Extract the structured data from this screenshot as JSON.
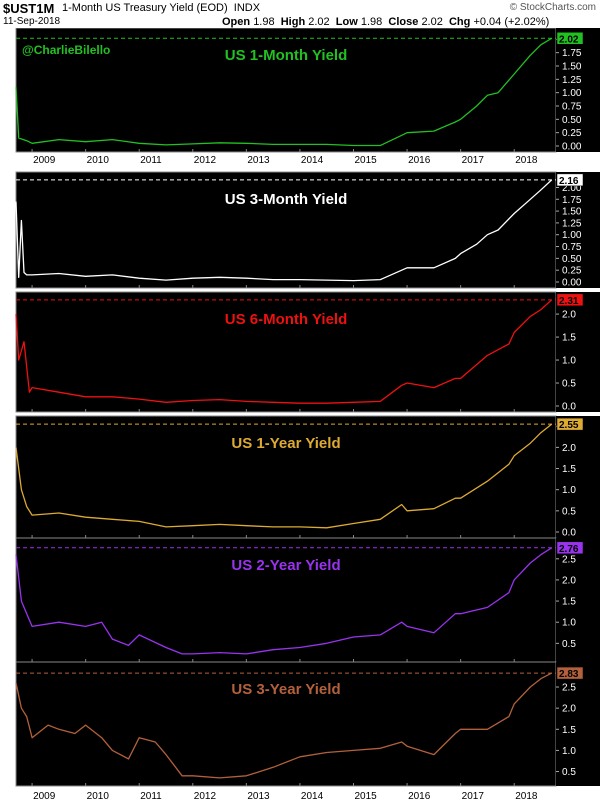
{
  "header": {
    "symbol": "$UST1M",
    "description": "1-Month US Treasury Yield (EOD)",
    "exchange": "INDX",
    "date": "11-Sep-2018",
    "open_label": "Open",
    "open": "1.98",
    "high_label": "High",
    "high": "2.02",
    "low_label": "Low",
    "low": "1.98",
    "close_label": "Close",
    "close": "2.02",
    "chg_label": "Chg",
    "chg": "+0.04 (+2.02%)",
    "brand": "© StockCharts.com"
  },
  "watermark": "@CharlieBilello",
  "chart_data": [
    {
      "type": "line",
      "title": "US 1-Month Yield",
      "color": "#22c022",
      "last_value": "2.02",
      "ylim": [
        0,
        2.1
      ],
      "yticks": [
        0.0,
        0.25,
        0.5,
        0.75,
        1.0,
        1.25,
        1.5,
        1.75,
        2.0
      ],
      "ytick_labels": [
        "0.00",
        "0.25",
        "0.50",
        "0.75",
        "1.00",
        "1.25",
        "1.50",
        "1.75",
        "2.00"
      ],
      "x": [
        2008.7,
        2008.75,
        2008.9,
        2009.0,
        2009.5,
        2010.0,
        2010.5,
        2011.0,
        2011.5,
        2012.0,
        2012.5,
        2013.0,
        2013.5,
        2014.0,
        2014.5,
        2015.0,
        2015.5,
        2015.9,
        2016.0,
        2016.5,
        2016.9,
        2017.0,
        2017.3,
        2017.5,
        2017.7,
        2018.0,
        2018.3,
        2018.5,
        2018.7
      ],
      "y": [
        1.1,
        0.15,
        0.1,
        0.05,
        0.12,
        0.08,
        0.12,
        0.05,
        0.02,
        0.04,
        0.06,
        0.05,
        0.03,
        0.03,
        0.03,
        0.01,
        0.01,
        0.2,
        0.25,
        0.28,
        0.45,
        0.5,
        0.75,
        0.95,
        1.0,
        1.35,
        1.7,
        1.9,
        2.02
      ]
    },
    {
      "type": "line",
      "title": "US 3-Month Yield",
      "color": "#ffffff",
      "last_value": "2.16",
      "ylim": [
        0,
        2.2
      ],
      "yticks": [
        0.0,
        0.25,
        0.5,
        0.75,
        1.0,
        1.25,
        1.5,
        1.75,
        2.0
      ],
      "ytick_labels": [
        "0.00",
        "0.25",
        "0.50",
        "0.75",
        "1.00",
        "1.25",
        "1.50",
        "1.75",
        "2.00"
      ],
      "x": [
        2008.7,
        2008.75,
        2008.8,
        2008.85,
        2008.9,
        2009.0,
        2009.5,
        2010.0,
        2010.5,
        2011.0,
        2011.5,
        2012.0,
        2012.5,
        2013.0,
        2013.5,
        2014.0,
        2014.5,
        2015.0,
        2015.5,
        2015.9,
        2016.0,
        2016.5,
        2016.9,
        2017.0,
        2017.3,
        2017.5,
        2017.7,
        2018.0,
        2018.3,
        2018.5,
        2018.7
      ],
      "y": [
        1.7,
        0.1,
        1.3,
        0.2,
        0.15,
        0.15,
        0.18,
        0.12,
        0.15,
        0.08,
        0.04,
        0.08,
        0.1,
        0.08,
        0.05,
        0.05,
        0.04,
        0.03,
        0.05,
        0.25,
        0.3,
        0.3,
        0.5,
        0.6,
        0.8,
        1.0,
        1.1,
        1.45,
        1.75,
        1.95,
        2.16
      ]
    },
    {
      "type": "line",
      "title": "US 6-Month Yield",
      "color": "#ee1111",
      "last_value": "2.31",
      "ylim": [
        0,
        2.35
      ],
      "yticks": [
        0.0,
        0.5,
        1.0,
        1.5,
        2.0
      ],
      "ytick_labels": [
        "0.0",
        "0.5",
        "1.0",
        "1.5",
        "2.0"
      ],
      "x": [
        2008.7,
        2008.75,
        2008.85,
        2008.95,
        2009.0,
        2009.5,
        2010.0,
        2010.5,
        2011.0,
        2011.5,
        2012.0,
        2012.5,
        2013.0,
        2013.5,
        2014.0,
        2014.5,
        2015.0,
        2015.5,
        2015.9,
        2016.0,
        2016.5,
        2016.9,
        2017.0,
        2017.5,
        2017.9,
        2018.0,
        2018.3,
        2018.5,
        2018.7
      ],
      "y": [
        2.0,
        1.0,
        1.4,
        0.3,
        0.4,
        0.3,
        0.2,
        0.2,
        0.15,
        0.08,
        0.12,
        0.14,
        0.1,
        0.08,
        0.06,
        0.06,
        0.08,
        0.1,
        0.45,
        0.5,
        0.4,
        0.6,
        0.6,
        1.1,
        1.35,
        1.6,
        1.95,
        2.1,
        2.31
      ]
    },
    {
      "type": "line",
      "title": "US 1-Year Yield",
      "color": "#ddaa33",
      "last_value": "2.55",
      "ylim": [
        0,
        2.6
      ],
      "yticks": [
        0.0,
        0.5,
        1.0,
        1.5,
        2.0,
        2.5
      ],
      "ytick_labels": [
        "0.0",
        "0.5",
        "1.0",
        "1.5",
        "2.0",
        "2.5"
      ],
      "x": [
        2008.7,
        2008.8,
        2008.9,
        2009.0,
        2009.5,
        2010.0,
        2010.5,
        2011.0,
        2011.5,
        2012.0,
        2012.5,
        2013.0,
        2013.5,
        2014.0,
        2014.5,
        2015.0,
        2015.5,
        2015.9,
        2016.0,
        2016.5,
        2016.9,
        2017.0,
        2017.5,
        2017.9,
        2018.0,
        2018.3,
        2018.5,
        2018.7
      ],
      "y": [
        2.0,
        1.0,
        0.6,
        0.4,
        0.45,
        0.35,
        0.3,
        0.25,
        0.12,
        0.15,
        0.18,
        0.15,
        0.12,
        0.12,
        0.1,
        0.2,
        0.3,
        0.65,
        0.5,
        0.55,
        0.8,
        0.8,
        1.2,
        1.6,
        1.8,
        2.1,
        2.35,
        2.55
      ]
    },
    {
      "type": "line",
      "title": "US 2-Year Yield",
      "color": "#9933ee",
      "last_value": "2.76",
      "ylim": [
        0.2,
        2.85
      ],
      "yticks": [
        0.5,
        1.0,
        1.5,
        2.0,
        2.5
      ],
      "ytick_labels": [
        "0.5",
        "1.0",
        "1.5",
        "2.0",
        "2.5"
      ],
      "x": [
        2008.7,
        2008.8,
        2008.9,
        2009.0,
        2009.5,
        2010.0,
        2010.3,
        2010.5,
        2010.8,
        2011.0,
        2011.5,
        2011.8,
        2012.0,
        2012.5,
        2013.0,
        2013.5,
        2014.0,
        2014.5,
        2015.0,
        2015.5,
        2015.9,
        2016.0,
        2016.5,
        2016.9,
        2017.0,
        2017.5,
        2017.9,
        2018.0,
        2018.3,
        2018.5,
        2018.7
      ],
      "y": [
        2.6,
        1.5,
        1.2,
        0.9,
        1.0,
        0.9,
        1.0,
        0.6,
        0.45,
        0.7,
        0.4,
        0.25,
        0.25,
        0.28,
        0.25,
        0.35,
        0.4,
        0.5,
        0.65,
        0.7,
        1.0,
        0.9,
        0.75,
        1.2,
        1.2,
        1.35,
        1.7,
        2.0,
        2.4,
        2.6,
        2.76
      ]
    },
    {
      "type": "line",
      "title": "US 3-Year Yield",
      "color": "#b3613c",
      "last_value": "2.83",
      "ylim": [
        0.3,
        2.95
      ],
      "yticks": [
        0.5,
        1.0,
        1.5,
        2.0,
        2.5
      ],
      "ytick_labels": [
        "0.5",
        "1.0",
        "1.5",
        "2.0",
        "2.5"
      ],
      "x": [
        2008.7,
        2008.8,
        2008.9,
        2009.0,
        2009.3,
        2009.5,
        2009.8,
        2010.0,
        2010.3,
        2010.5,
        2010.8,
        2011.0,
        2011.3,
        2011.5,
        2011.8,
        2012.0,
        2012.5,
        2013.0,
        2013.5,
        2014.0,
        2014.5,
        2015.0,
        2015.5,
        2015.9,
        2016.0,
        2016.5,
        2016.9,
        2017.0,
        2017.5,
        2017.9,
        2018.0,
        2018.3,
        2018.5,
        2018.7
      ],
      "y": [
        2.6,
        2.0,
        1.8,
        1.3,
        1.6,
        1.5,
        1.4,
        1.6,
        1.3,
        1.0,
        0.8,
        1.3,
        1.2,
        0.9,
        0.4,
        0.4,
        0.35,
        0.4,
        0.6,
        0.85,
        0.95,
        1.0,
        1.05,
        1.2,
        1.1,
        0.9,
        1.4,
        1.5,
        1.5,
        1.8,
        2.1,
        2.5,
        2.7,
        2.83
      ]
    }
  ],
  "x_axis": {
    "xlim": [
      2008.7,
      2018.78
    ],
    "years": [
      2009,
      2010,
      2011,
      2012,
      2013,
      2014,
      2015,
      2016,
      2017,
      2018
    ],
    "year_labels": [
      "2009",
      "2010",
      "2011",
      "2012",
      "2013",
      "2014",
      "2015",
      "2016",
      "2017",
      "2018"
    ]
  }
}
